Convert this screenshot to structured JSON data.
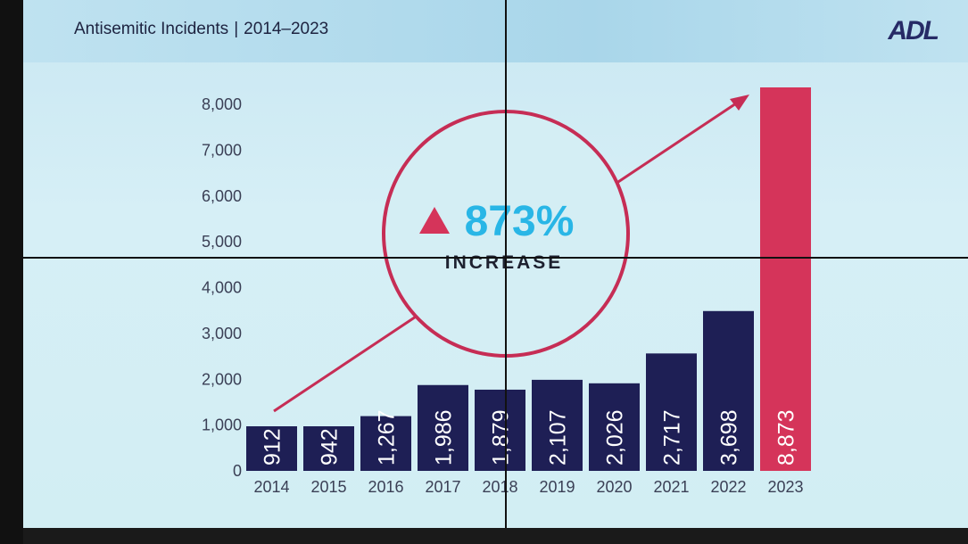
{
  "header": {
    "title": "Antisemitic Incidents",
    "years": "2014–2023",
    "logo": "ADL"
  },
  "callout": {
    "percent": "873%",
    "label": "INCREASE",
    "icon": "triangle-up-icon"
  },
  "colors": {
    "bar": "#1e1f55",
    "highlight": "#d5345a",
    "accent_text": "#29b6e6",
    "circle": "#c62d55"
  },
  "chart_data": {
    "type": "bar",
    "title": "Antisemitic Incidents | 2014–2023",
    "categories": [
      "2014",
      "2015",
      "2016",
      "2017",
      "2018",
      "2019",
      "2020",
      "2021",
      "2022",
      "2023"
    ],
    "values": [
      912,
      942,
      1267,
      1986,
      1879,
      2107,
      2026,
      2717,
      3698,
      8873
    ],
    "value_labels": [
      "912",
      "942",
      "1,267",
      "1,986",
      "1,879",
      "2,107",
      "2,026",
      "2,717",
      "3,698",
      "8,873"
    ],
    "yticks": [
      "0",
      "1,000",
      "2,000",
      "3,000",
      "4,000",
      "5,000",
      "6,000",
      "7,000",
      "8,000"
    ],
    "ylim": [
      0,
      8873
    ],
    "grid": false,
    "highlight_category": "2023"
  }
}
